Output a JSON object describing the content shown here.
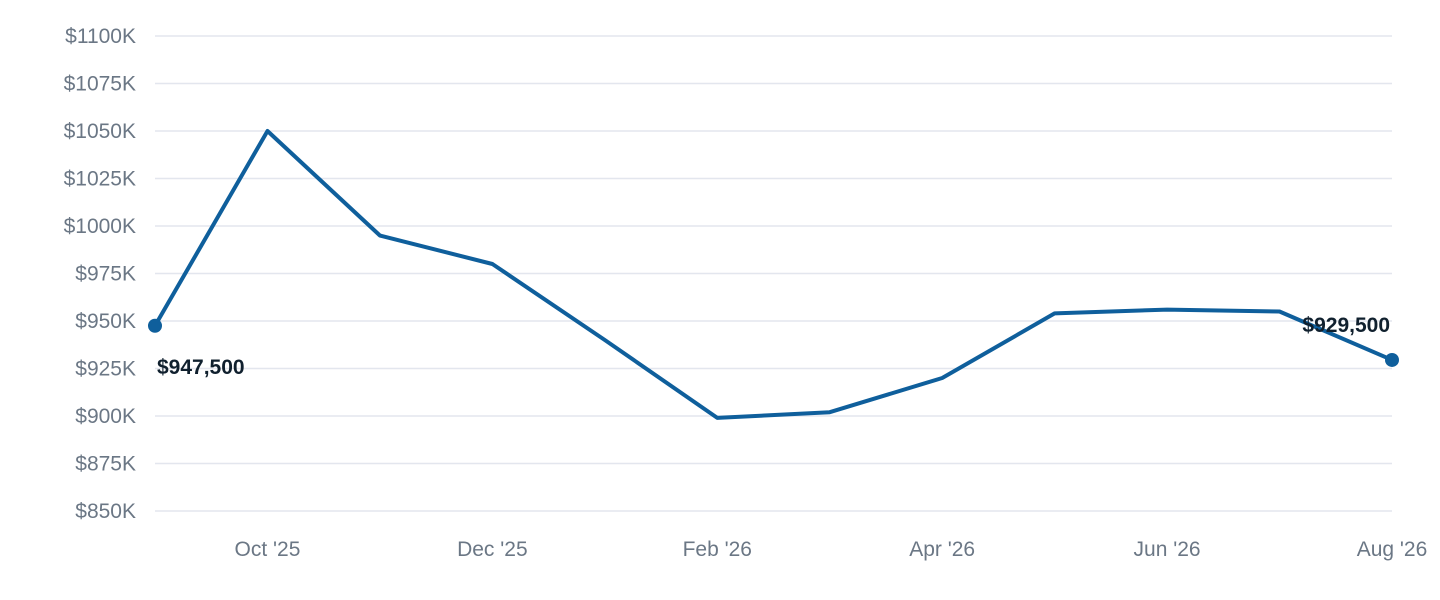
{
  "chart_data": {
    "type": "line",
    "title": "",
    "xlabel": "",
    "ylabel": "",
    "ylim": [
      850,
      1100
    ],
    "y_ticks": [
      850,
      875,
      900,
      925,
      950,
      975,
      1000,
      1025,
      1050,
      1075,
      1100
    ],
    "y_tick_labels": [
      "$850K",
      "$875K",
      "$900K",
      "$925K",
      "$950K",
      "$975K",
      "$1000K",
      "$1025K",
      "$1050K",
      "$1075K",
      "$1100K"
    ],
    "x": [
      "2025-09",
      "2025-10",
      "2025-11",
      "2025-12",
      "2026-01",
      "2026-02",
      "2026-03",
      "2026-04",
      "2026-05",
      "2026-06",
      "2026-07",
      "2026-08"
    ],
    "x_tick_labels": [
      {
        "x": "2025-10",
        "label": "Oct '25"
      },
      {
        "x": "2025-12",
        "label": "Dec '25"
      },
      {
        "x": "2026-02",
        "label": "Feb '26"
      },
      {
        "x": "2026-04",
        "label": "Apr '26"
      },
      {
        "x": "2026-06",
        "label": "Jun '26"
      },
      {
        "x": "2026-08",
        "label": "Aug '26"
      }
    ],
    "series": [
      {
        "color": "#0f5f9c",
        "values": [
          947.5,
          1050,
          995,
          980,
          940,
          899,
          902,
          920,
          954,
          956,
          955,
          929.5
        ]
      }
    ],
    "annotations": [
      {
        "x": "2025-09",
        "label": "$947,500"
      },
      {
        "x": "2026-08",
        "label": "$929,500"
      }
    ],
    "grid": true,
    "legend": "none"
  }
}
